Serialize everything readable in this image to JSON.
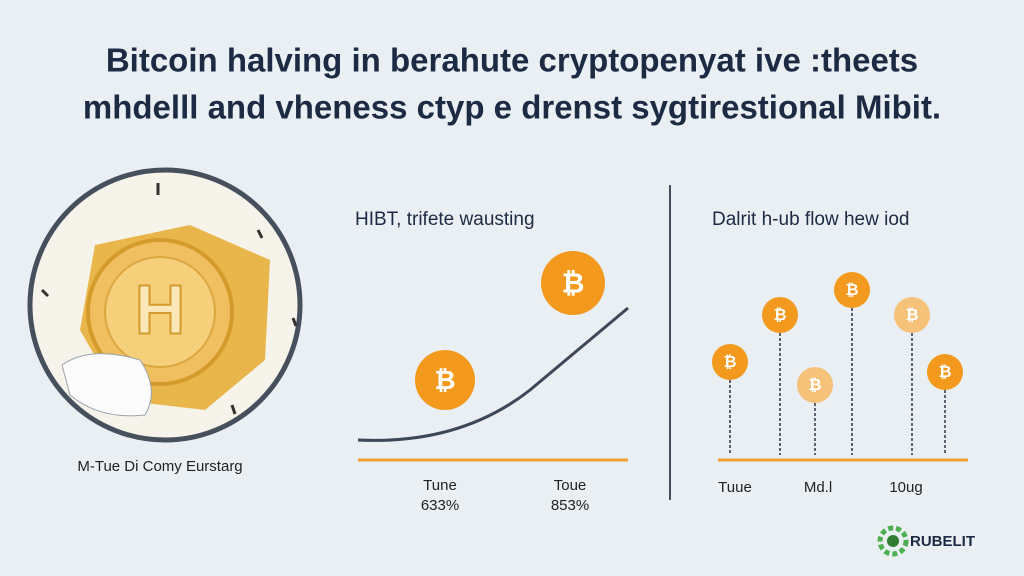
{
  "header": {
    "title_lines": [
      "Bitcoin halving in berahute cryptopenyat ive :theets",
      "mhdelll and vheness ctyp e drenst sygtirestional Mibit."
    ]
  },
  "left_panel": {
    "coin_letter": "H",
    "caption": "M-Tue Di Comy Eurstarg"
  },
  "middle_panel": {
    "heading": "HIBT, trifete wausting",
    "coin_symbol": "₿",
    "labels": [
      {
        "name": "Tune",
        "value": "633%"
      },
      {
        "name": "Toue",
        "value": "853%"
      }
    ]
  },
  "right_panel": {
    "heading": "Dalrit h-ub flow hew iod",
    "labels": [
      "Tuue",
      "Md.l",
      "10ug"
    ]
  },
  "logo": {
    "text": "RUBELIT"
  }
}
